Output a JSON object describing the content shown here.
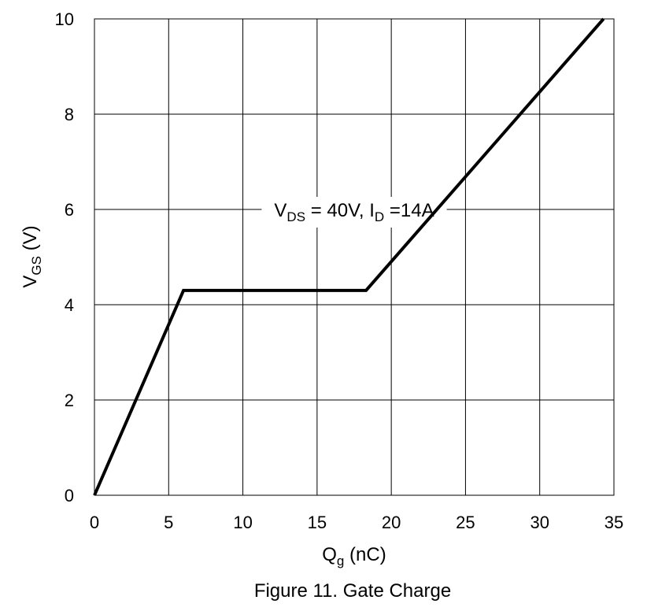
{
  "caption": "Figure 11. Gate Charge",
  "chart_data": {
    "type": "line",
    "title": "",
    "xlabel": {
      "main": "Q",
      "sub": "g",
      "tail": " (nC)"
    },
    "ylabel": {
      "main": "V",
      "sub": "GS",
      "tail": " (V)"
    },
    "xlim": [
      0,
      35
    ],
    "ylim": [
      0,
      10
    ],
    "xticks": [
      0,
      5,
      10,
      15,
      20,
      25,
      30,
      35
    ],
    "yticks": [
      0,
      2,
      4,
      6,
      8,
      10
    ],
    "grid": true,
    "annotation": {
      "part1": "V",
      "sub1": "DS",
      "part2": " = 40V, I",
      "sub2": "D",
      "part3": " =14A",
      "at": {
        "x": 17.5,
        "y": 6
      }
    },
    "series": [
      {
        "x": [
          0,
          6.0,
          18.3,
          34.3
        ],
        "y": [
          0,
          4.3,
          4.3,
          10.0
        ],
        "color": "#000000"
      }
    ]
  }
}
